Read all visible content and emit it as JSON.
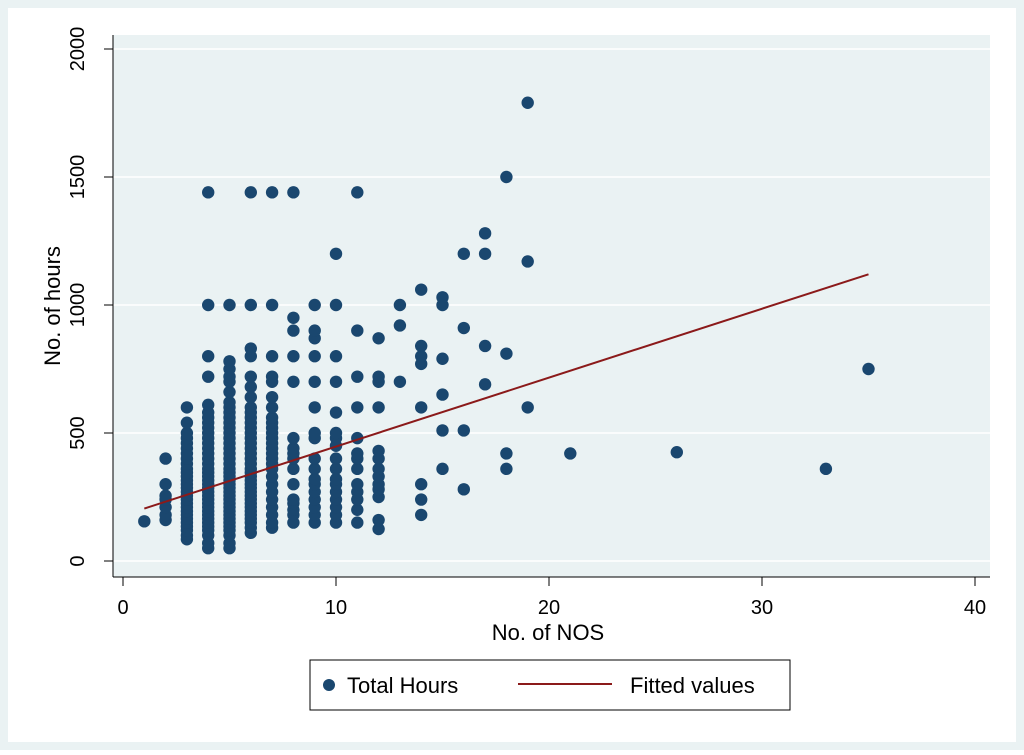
{
  "chart_data": {
    "type": "scatter",
    "title": "",
    "xlabel": "No. of NOS",
    "ylabel": "No. of hours",
    "xlim": [
      0,
      40
    ],
    "ylim": [
      0,
      2000
    ],
    "x_ticks": [
      0,
      10,
      20,
      30,
      40
    ],
    "y_ticks": [
      0,
      500,
      1000,
      1500,
      2000
    ],
    "x_tick_labels": [
      "0",
      "10",
      "20",
      "30",
      "40"
    ],
    "y_tick_labels": [
      "0",
      "500",
      "1000",
      "1500",
      "2000"
    ],
    "grid": true,
    "legend_position": "bottom",
    "legend": [
      {
        "label": "Total Hours",
        "kind": "marker",
        "color": "#1a476f"
      },
      {
        "label": "Fitted values",
        "kind": "line",
        "color": "#8b1a1a"
      }
    ],
    "colors": {
      "marker": "#1a476f",
      "fit": "#8b1a1a",
      "panel": "#eaf2f3",
      "grid": "#ffffff"
    },
    "series": [
      {
        "name": "Total Hours",
        "type": "scatter",
        "points": [
          [
            1,
            155
          ],
          [
            2,
            160
          ],
          [
            2,
            180
          ],
          [
            2,
            210
          ],
          [
            2,
            240
          ],
          [
            2,
            255
          ],
          [
            2,
            300
          ],
          [
            2,
            400
          ],
          [
            3,
            85
          ],
          [
            3,
            100
          ],
          [
            3,
            120
          ],
          [
            3,
            135
          ],
          [
            3,
            150
          ],
          [
            3,
            165
          ],
          [
            3,
            180
          ],
          [
            3,
            195
          ],
          [
            3,
            210
          ],
          [
            3,
            225
          ],
          [
            3,
            240
          ],
          [
            3,
            255
          ],
          [
            3,
            270
          ],
          [
            3,
            285
          ],
          [
            3,
            300
          ],
          [
            3,
            315
          ],
          [
            3,
            330
          ],
          [
            3,
            345
          ],
          [
            3,
            360
          ],
          [
            3,
            380
          ],
          [
            3,
            400
          ],
          [
            3,
            420
          ],
          [
            3,
            440
          ],
          [
            3,
            460
          ],
          [
            3,
            480
          ],
          [
            3,
            500
          ],
          [
            3,
            540
          ],
          [
            3,
            600
          ],
          [
            4,
            50
          ],
          [
            4,
            70
          ],
          [
            4,
            100
          ],
          [
            4,
            120
          ],
          [
            4,
            135
          ],
          [
            4,
            150
          ],
          [
            4,
            165
          ],
          [
            4,
            180
          ],
          [
            4,
            195
          ],
          [
            4,
            210
          ],
          [
            4,
            225
          ],
          [
            4,
            240
          ],
          [
            4,
            255
          ],
          [
            4,
            270
          ],
          [
            4,
            285
          ],
          [
            4,
            300
          ],
          [
            4,
            315
          ],
          [
            4,
            330
          ],
          [
            4,
            345
          ],
          [
            4,
            360
          ],
          [
            4,
            380
          ],
          [
            4,
            400
          ],
          [
            4,
            420
          ],
          [
            4,
            440
          ],
          [
            4,
            460
          ],
          [
            4,
            480
          ],
          [
            4,
            500
          ],
          [
            4,
            520
          ],
          [
            4,
            540
          ],
          [
            4,
            560
          ],
          [
            4,
            580
          ],
          [
            4,
            610
          ],
          [
            4,
            720
          ],
          [
            4,
            800
          ],
          [
            4,
            1000
          ],
          [
            4,
            1440
          ],
          [
            5,
            50
          ],
          [
            5,
            70
          ],
          [
            5,
            100
          ],
          [
            5,
            120
          ],
          [
            5,
            135
          ],
          [
            5,
            150
          ],
          [
            5,
            165
          ],
          [
            5,
            180
          ],
          [
            5,
            195
          ],
          [
            5,
            210
          ],
          [
            5,
            225
          ],
          [
            5,
            240
          ],
          [
            5,
            255
          ],
          [
            5,
            270
          ],
          [
            5,
            285
          ],
          [
            5,
            300
          ],
          [
            5,
            315
          ],
          [
            5,
            330
          ],
          [
            5,
            345
          ],
          [
            5,
            360
          ],
          [
            5,
            380
          ],
          [
            5,
            400
          ],
          [
            5,
            420
          ],
          [
            5,
            440
          ],
          [
            5,
            460
          ],
          [
            5,
            480
          ],
          [
            5,
            500
          ],
          [
            5,
            520
          ],
          [
            5,
            540
          ],
          [
            5,
            560
          ],
          [
            5,
            580
          ],
          [
            5,
            600
          ],
          [
            5,
            620
          ],
          [
            5,
            660
          ],
          [
            5,
            700
          ],
          [
            5,
            720
          ],
          [
            5,
            750
          ],
          [
            5,
            780
          ],
          [
            5,
            1000
          ],
          [
            6,
            110
          ],
          [
            6,
            130
          ],
          [
            6,
            150
          ],
          [
            6,
            165
          ],
          [
            6,
            180
          ],
          [
            6,
            195
          ],
          [
            6,
            210
          ],
          [
            6,
            225
          ],
          [
            6,
            240
          ],
          [
            6,
            255
          ],
          [
            6,
            270
          ],
          [
            6,
            285
          ],
          [
            6,
            300
          ],
          [
            6,
            315
          ],
          [
            6,
            330
          ],
          [
            6,
            345
          ],
          [
            6,
            360
          ],
          [
            6,
            380
          ],
          [
            6,
            400
          ],
          [
            6,
            420
          ],
          [
            6,
            440
          ],
          [
            6,
            460
          ],
          [
            6,
            480
          ],
          [
            6,
            500
          ],
          [
            6,
            520
          ],
          [
            6,
            540
          ],
          [
            6,
            560
          ],
          [
            6,
            580
          ],
          [
            6,
            600
          ],
          [
            6,
            640
          ],
          [
            6,
            680
          ],
          [
            6,
            720
          ],
          [
            6,
            800
          ],
          [
            6,
            830
          ],
          [
            6,
            1000
          ],
          [
            6,
            1440
          ],
          [
            7,
            130
          ],
          [
            7,
            150
          ],
          [
            7,
            180
          ],
          [
            7,
            210
          ],
          [
            7,
            240
          ],
          [
            7,
            270
          ],
          [
            7,
            300
          ],
          [
            7,
            330
          ],
          [
            7,
            360
          ],
          [
            7,
            380
          ],
          [
            7,
            400
          ],
          [
            7,
            420
          ],
          [
            7,
            440
          ],
          [
            7,
            460
          ],
          [
            7,
            480
          ],
          [
            7,
            500
          ],
          [
            7,
            520
          ],
          [
            7,
            540
          ],
          [
            7,
            560
          ],
          [
            7,
            600
          ],
          [
            7,
            640
          ],
          [
            7,
            700
          ],
          [
            7,
            720
          ],
          [
            7,
            800
          ],
          [
            7,
            1000
          ],
          [
            7,
            1440
          ],
          [
            8,
            150
          ],
          [
            8,
            180
          ],
          [
            8,
            200
          ],
          [
            8,
            225
          ],
          [
            8,
            240
          ],
          [
            8,
            300
          ],
          [
            8,
            360
          ],
          [
            8,
            400
          ],
          [
            8,
            420
          ],
          [
            8,
            440
          ],
          [
            8,
            480
          ],
          [
            8,
            700
          ],
          [
            8,
            800
          ],
          [
            8,
            900
          ],
          [
            8,
            950
          ],
          [
            8,
            1440
          ],
          [
            9,
            150
          ],
          [
            9,
            180
          ],
          [
            9,
            210
          ],
          [
            9,
            240
          ],
          [
            9,
            270
          ],
          [
            9,
            300
          ],
          [
            9,
            320
          ],
          [
            9,
            360
          ],
          [
            9,
            400
          ],
          [
            9,
            480
          ],
          [
            9,
            500
          ],
          [
            9,
            600
          ],
          [
            9,
            700
          ],
          [
            9,
            800
          ],
          [
            9,
            870
          ],
          [
            9,
            900
          ],
          [
            9,
            1000
          ],
          [
            10,
            150
          ],
          [
            10,
            180
          ],
          [
            10,
            210
          ],
          [
            10,
            240
          ],
          [
            10,
            270
          ],
          [
            10,
            300
          ],
          [
            10,
            320
          ],
          [
            10,
            360
          ],
          [
            10,
            400
          ],
          [
            10,
            450
          ],
          [
            10,
            480
          ],
          [
            10,
            500
          ],
          [
            10,
            580
          ],
          [
            10,
            700
          ],
          [
            10,
            800
          ],
          [
            10,
            1000
          ],
          [
            10,
            1200
          ],
          [
            11,
            150
          ],
          [
            11,
            200
          ],
          [
            11,
            240
          ],
          [
            11,
            270
          ],
          [
            11,
            300
          ],
          [
            11,
            360
          ],
          [
            11,
            400
          ],
          [
            11,
            420
          ],
          [
            11,
            480
          ],
          [
            11,
            600
          ],
          [
            11,
            720
          ],
          [
            11,
            900
          ],
          [
            11,
            1440
          ],
          [
            12,
            125
          ],
          [
            12,
            160
          ],
          [
            12,
            250
          ],
          [
            12,
            280
          ],
          [
            12,
            300
          ],
          [
            12,
            330
          ],
          [
            12,
            360
          ],
          [
            12,
            400
          ],
          [
            12,
            430
          ],
          [
            12,
            600
          ],
          [
            12,
            700
          ],
          [
            12,
            720
          ],
          [
            12,
            870
          ],
          [
            13,
            700
          ],
          [
            13,
            920
          ],
          [
            13,
            1000
          ],
          [
            14,
            180
          ],
          [
            14,
            240
          ],
          [
            14,
            300
          ],
          [
            14,
            600
          ],
          [
            14,
            770
          ],
          [
            14,
            800
          ],
          [
            14,
            840
          ],
          [
            14,
            1060
          ],
          [
            15,
            360
          ],
          [
            15,
            510
          ],
          [
            15,
            650
          ],
          [
            15,
            790
          ],
          [
            15,
            1000
          ],
          [
            15,
            1030
          ],
          [
            16,
            280
          ],
          [
            16,
            510
          ],
          [
            16,
            910
          ],
          [
            16,
            1200
          ],
          [
            17,
            690
          ],
          [
            17,
            840
          ],
          [
            17,
            1200
          ],
          [
            17,
            1280
          ],
          [
            18,
            360
          ],
          [
            18,
            420
          ],
          [
            18,
            810
          ],
          [
            18,
            1500
          ],
          [
            19,
            600
          ],
          [
            19,
            1170
          ],
          [
            19,
            1790
          ],
          [
            21,
            420
          ],
          [
            26,
            425
          ],
          [
            33,
            360
          ],
          [
            35,
            750
          ]
        ]
      },
      {
        "name": "Fitted values",
        "type": "line",
        "x": [
          1,
          35
        ],
        "y": [
          205,
          1120
        ]
      }
    ]
  }
}
